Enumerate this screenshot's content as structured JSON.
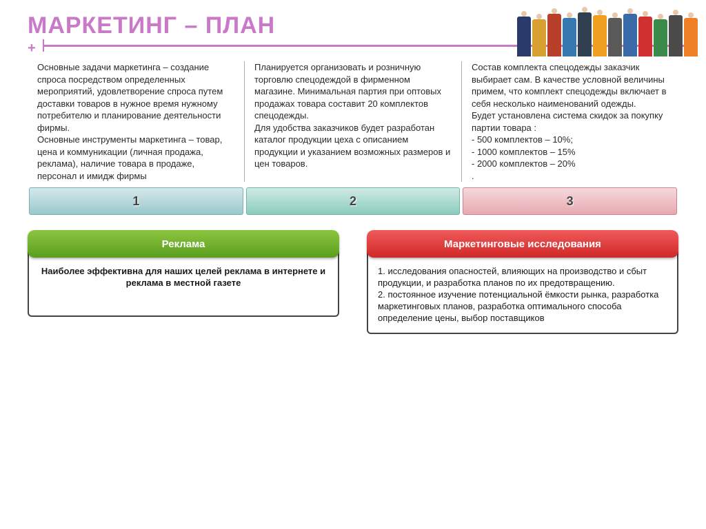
{
  "title": "МАРКЕТИНГ – ПЛАН",
  "columns": {
    "col1": "Основные задачи маркетинга – создание спроса посредством определенных мероприятий, удовлетворение спроса путем доставки товаров в нужное время нужному потребителю и планирование деятельности фирмы.\nОсновные инструменты маркетинга – товар, цена и коммуникации (личная продажа, реклама), наличие товара в продаже, персонал и имидж фирмы",
    "col2": "Планируется организовать и розничную торговлю спецодеждой в фирменном магазине. Минимальная партия при оптовых продажах товара составит 20 комплектов спецодежды.\nДля удобства заказчиков будет разработан каталог продукции цеха с описанием продукции и указанием возможных размеров и цен товаров.",
    "col3": "Состав комплекта спецодежды заказчик выбирает сам. В качестве условной величины примем, что комплект спецодежды включает в себя несколько наименований одежды.\n  Будет установлена система скидок за покупку партии товара :\n- 500 комплектов – 10%;\n- 1000 комплектов – 15%\n- 2000 комплектов – 20%\n."
  },
  "tabs": {
    "t1": "1",
    "t2": "2",
    "t3": "3"
  },
  "boxes": {
    "left": {
      "title": "Реклама",
      "body": "Наиболее эффективна для наших целей реклама в интернете и реклама в местной газете"
    },
    "right": {
      "title": "Маркетинговые исследования",
      "body": "1. исследования опасностей, влияющих на производство и сбыт продукции, и разработка планов по их предотвращению.\n2. постоянное изучение потенциальной ёмкости рынка, разработка маркетинговых планов, разработка оптимального способа определение цены, выбор поставщиков"
    }
  },
  "people_colors": [
    "#2a3a6a",
    "#d8a030",
    "#b8402a",
    "#3878b0",
    "#304050",
    "#f0a020",
    "#5a5a5a",
    "#3a6aa8",
    "#d03030",
    "#3a8a4a",
    "#4a4a4a",
    "#f08028"
  ],
  "people_heights": [
    58,
    54,
    62,
    56,
    64,
    60,
    56,
    62,
    58,
    54,
    60,
    56
  ]
}
